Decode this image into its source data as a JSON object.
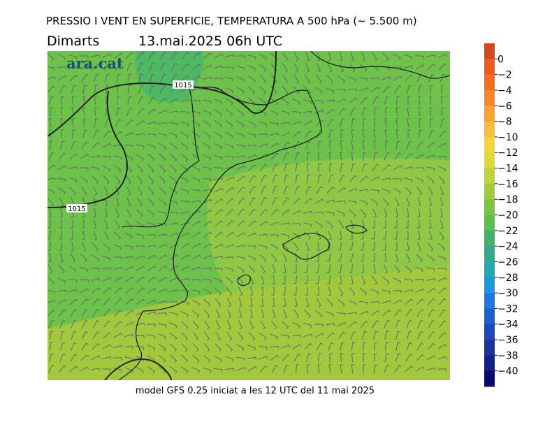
{
  "header": {
    "title": "PRESSIO I VENT EN SUPERFICIE, TEMPERATURA A 500 hPa (~ 5.500 m)",
    "day": "Dimarts",
    "datetime": "13.mai.2025 06h UTC"
  },
  "map": {
    "logo": "ara.cat",
    "isobar_labels": [
      "1015",
      "1015"
    ]
  },
  "footer": "model GFS 0.25 iniciat a les 12 UTC del 11 mai 2025",
  "colorbar": {
    "ticks": [
      0,
      {
        "value": -2,
        "label": "−2"
      },
      {
        "value": -4,
        "label": "−4"
      },
      {
        "value": -6,
        "label": "−6"
      },
      {
        "value": -8,
        "label": "−8"
      },
      {
        "value": -10,
        "label": "−10"
      },
      {
        "value": -12,
        "label": "−12"
      },
      {
        "value": -14,
        "label": "−14"
      },
      {
        "value": -16,
        "label": "−16"
      },
      {
        "value": -18,
        "label": "−18"
      },
      {
        "value": -20,
        "label": "−20"
      },
      {
        "value": -22,
        "label": "−22"
      },
      {
        "value": -24,
        "label": "−24"
      },
      {
        "value": -26,
        "label": "−26"
      },
      {
        "value": -28,
        "label": "−28"
      },
      {
        "value": -30,
        "label": "−30"
      },
      {
        "value": -32,
        "label": "−32"
      },
      {
        "value": -34,
        "label": "−34"
      },
      {
        "value": -36,
        "label": "−36"
      },
      {
        "value": -38,
        "label": "−38"
      },
      {
        "value": -40,
        "label": "−40"
      }
    ],
    "colors": [
      "#d24a1c",
      "#f05a1e",
      "#f56d23",
      "#f7862a",
      "#f8a236",
      "#f8bd3c",
      "#f3d43d",
      "#e0d83b",
      "#bed43c",
      "#9ecb3e",
      "#7cc444",
      "#5cbe4c",
      "#43b266",
      "#33a88a",
      "#23a8b4",
      "#1c96dc",
      "#1e78e0",
      "#1e5fcf",
      "#1e48b8",
      "#1a349e",
      "#12208a",
      "#0a0a6e"
    ]
  }
}
